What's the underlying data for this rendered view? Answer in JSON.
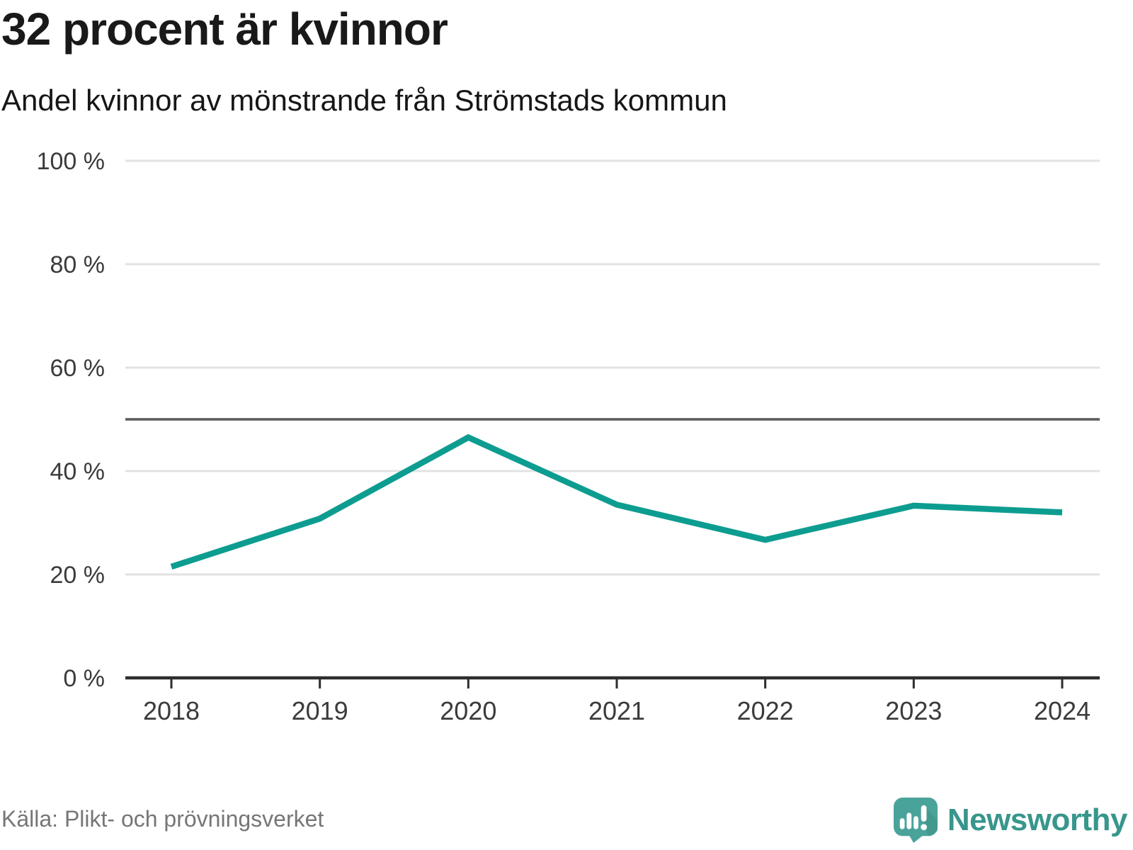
{
  "header": {
    "title": "32 procent är kvinnor",
    "subtitle": "Andel kvinnor av mönstrande från Strömstads kommun"
  },
  "footer": {
    "source": "Källa: Plikt- och prövningsverket",
    "brand": "Newsworthy",
    "logo_icon": "bar-chart-speech-bubble-icon"
  },
  "colors": {
    "line": "#0d9d90",
    "grid": "#e2e2e2",
    "reference_line": "#58595b",
    "axis": "#2e2e2e",
    "tick_text": "#3b3b3b",
    "title_text": "#191919",
    "muted_text": "#767676",
    "brand_teal": "#38968c",
    "logo_fill": "#4aa39a",
    "logo_fold": "#3d8d83"
  },
  "chart_data": {
    "type": "line",
    "title": "32 procent är kvinnor",
    "subtitle": "Andel kvinnor av mönstrande från Strömstads kommun",
    "categories": [
      2018,
      2019,
      2020,
      2021,
      2022,
      2023,
      2024
    ],
    "series": [
      {
        "name": "Andel kvinnor av mönstrande",
        "values": [
          21.5,
          30.8,
          46.5,
          33.5,
          26.7,
          33.3,
          32.0
        ]
      }
    ],
    "ylim": [
      0,
      100
    ],
    "yticks": [
      0,
      20,
      40,
      60,
      80,
      100
    ],
    "ytick_suffix": " %",
    "reference_line_y": 50,
    "grid": true,
    "legend_position": "none",
    "xlabel": "",
    "ylabel": "",
    "source": "Källa: Plikt- och prövningsverket"
  }
}
